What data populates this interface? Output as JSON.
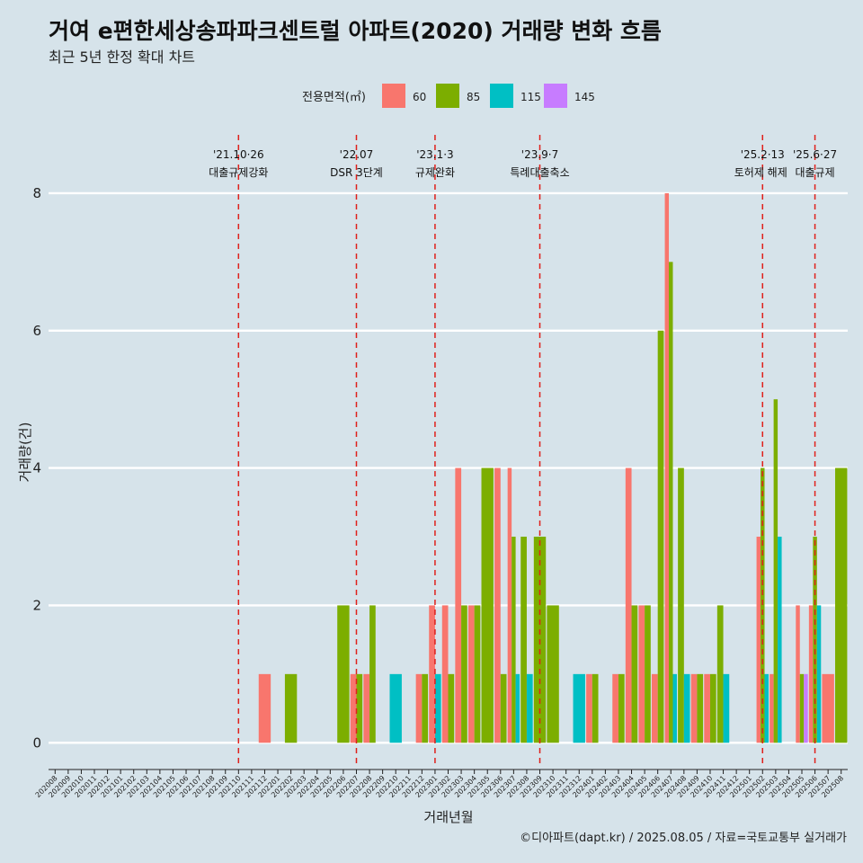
{
  "title": "거여 e편한세상송파파크센트럴 아파트(2020) 거래량 변화 흐름",
  "subtitle": "최근 5년 한정 확대 차트",
  "caption": "©디아파트(dapt.kr) / 2025.08.05 / 자료=국토교통부 실거래가",
  "colors": {
    "background": "#d6e3ea",
    "grid": "#ffffff",
    "event_line": "#e0201b",
    "s60": "#f8766d",
    "s85": "#7cae00",
    "s115": "#00bfc4",
    "s145": "#c77cff"
  },
  "chart_data": {
    "type": "bar",
    "xlabel": "거래년월",
    "ylabel": "거래량(건)",
    "ylim": [
      -0.35,
      8.85
    ],
    "yticks": [
      0,
      2,
      4,
      6,
      8
    ],
    "grid": true,
    "legend_position": "top",
    "legend_title": "전용면적(㎡)",
    "categories": [
      "202008",
      "202009",
      "202010",
      "202011",
      "202012",
      "202101",
      "202102",
      "202103",
      "202104",
      "202105",
      "202106",
      "202107",
      "202108",
      "202109",
      "202110",
      "202111",
      "202112",
      "202201",
      "202202",
      "202203",
      "202204",
      "202205",
      "202206",
      "202207",
      "202208",
      "202209",
      "202210",
      "202211",
      "202212",
      "202301",
      "202302",
      "202303",
      "202304",
      "202305",
      "202306",
      "202307",
      "202308",
      "202309",
      "202310",
      "202311",
      "202312",
      "202401",
      "202402",
      "202403",
      "202404",
      "202405",
      "202406",
      "202407",
      "202408",
      "202409",
      "202410",
      "202411",
      "202412",
      "202501",
      "202502",
      "202503",
      "202504",
      "202505",
      "202506",
      "202507",
      "202508"
    ],
    "series": [
      {
        "name": "60",
        "values": [
          0,
          0,
          0,
          0,
          0,
          0,
          0,
          0,
          0,
          0,
          0,
          0,
          0,
          0,
          0,
          0,
          1,
          0,
          0,
          0,
          0,
          0,
          0,
          1,
          1,
          0,
          0,
          0,
          1,
          2,
          2,
          4,
          2,
          0,
          4,
          4,
          0,
          0,
          0,
          0,
          0,
          1,
          0,
          1,
          4,
          2,
          1,
          8,
          0,
          1,
          1,
          0,
          0,
          0,
          3,
          1,
          0,
          2,
          2,
          1,
          0
        ]
      },
      {
        "name": "85",
        "values": [
          0,
          0,
          0,
          0,
          0,
          0,
          0,
          0,
          0,
          0,
          0,
          0,
          0,
          0,
          0,
          0,
          0,
          0,
          1,
          0,
          0,
          0,
          2,
          1,
          2,
          0,
          0,
          0,
          1,
          0,
          1,
          2,
          2,
          4,
          1,
          3,
          3,
          3,
          2,
          0,
          0,
          1,
          0,
          1,
          2,
          2,
          6,
          7,
          4,
          1,
          1,
          2,
          0,
          0,
          4,
          5,
          0,
          1,
          3,
          0,
          4
        ]
      },
      {
        "name": "115",
        "values": [
          0,
          0,
          0,
          0,
          0,
          0,
          0,
          0,
          0,
          0,
          0,
          0,
          0,
          0,
          0,
          0,
          0,
          0,
          0,
          0,
          0,
          0,
          0,
          0,
          0,
          0,
          1,
          0,
          0,
          1,
          0,
          0,
          0,
          0,
          0,
          1,
          1,
          0,
          0,
          0,
          1,
          0,
          0,
          0,
          0,
          0,
          0,
          1,
          1,
          0,
          0,
          1,
          0,
          0,
          1,
          3,
          0,
          0,
          2,
          0,
          0
        ]
      },
      {
        "name": "145",
        "values": [
          0,
          0,
          0,
          0,
          0,
          0,
          0,
          0,
          0,
          0,
          0,
          0,
          0,
          0,
          0,
          0,
          0,
          0,
          0,
          0,
          0,
          0,
          0,
          0,
          0,
          0,
          0,
          0,
          0,
          0,
          0,
          0,
          0,
          0,
          0,
          0,
          0,
          0,
          0,
          0,
          0,
          0,
          0,
          0,
          0,
          0,
          0,
          0,
          0,
          0,
          0,
          0,
          0,
          0,
          0,
          0,
          0,
          1,
          0,
          0,
          0
        ]
      }
    ],
    "annotations": [
      {
        "date_label": "'21.10·26",
        "text": "대출규제강화",
        "at": "202110"
      },
      {
        "date_label": "'22.07",
        "text": "DSR 3단계",
        "at": "202207"
      },
      {
        "date_label": "'23.1·3",
        "text": "규제완화",
        "at": "202301"
      },
      {
        "date_label": "'23.9·7",
        "text": "특례대출축소",
        "at": "202309"
      },
      {
        "date_label": "'25.2·13",
        "text": "토허제 해제",
        "at": "202502"
      },
      {
        "date_label": "'25.6·27",
        "text": "대출규제",
        "at": "202506"
      }
    ]
  }
}
